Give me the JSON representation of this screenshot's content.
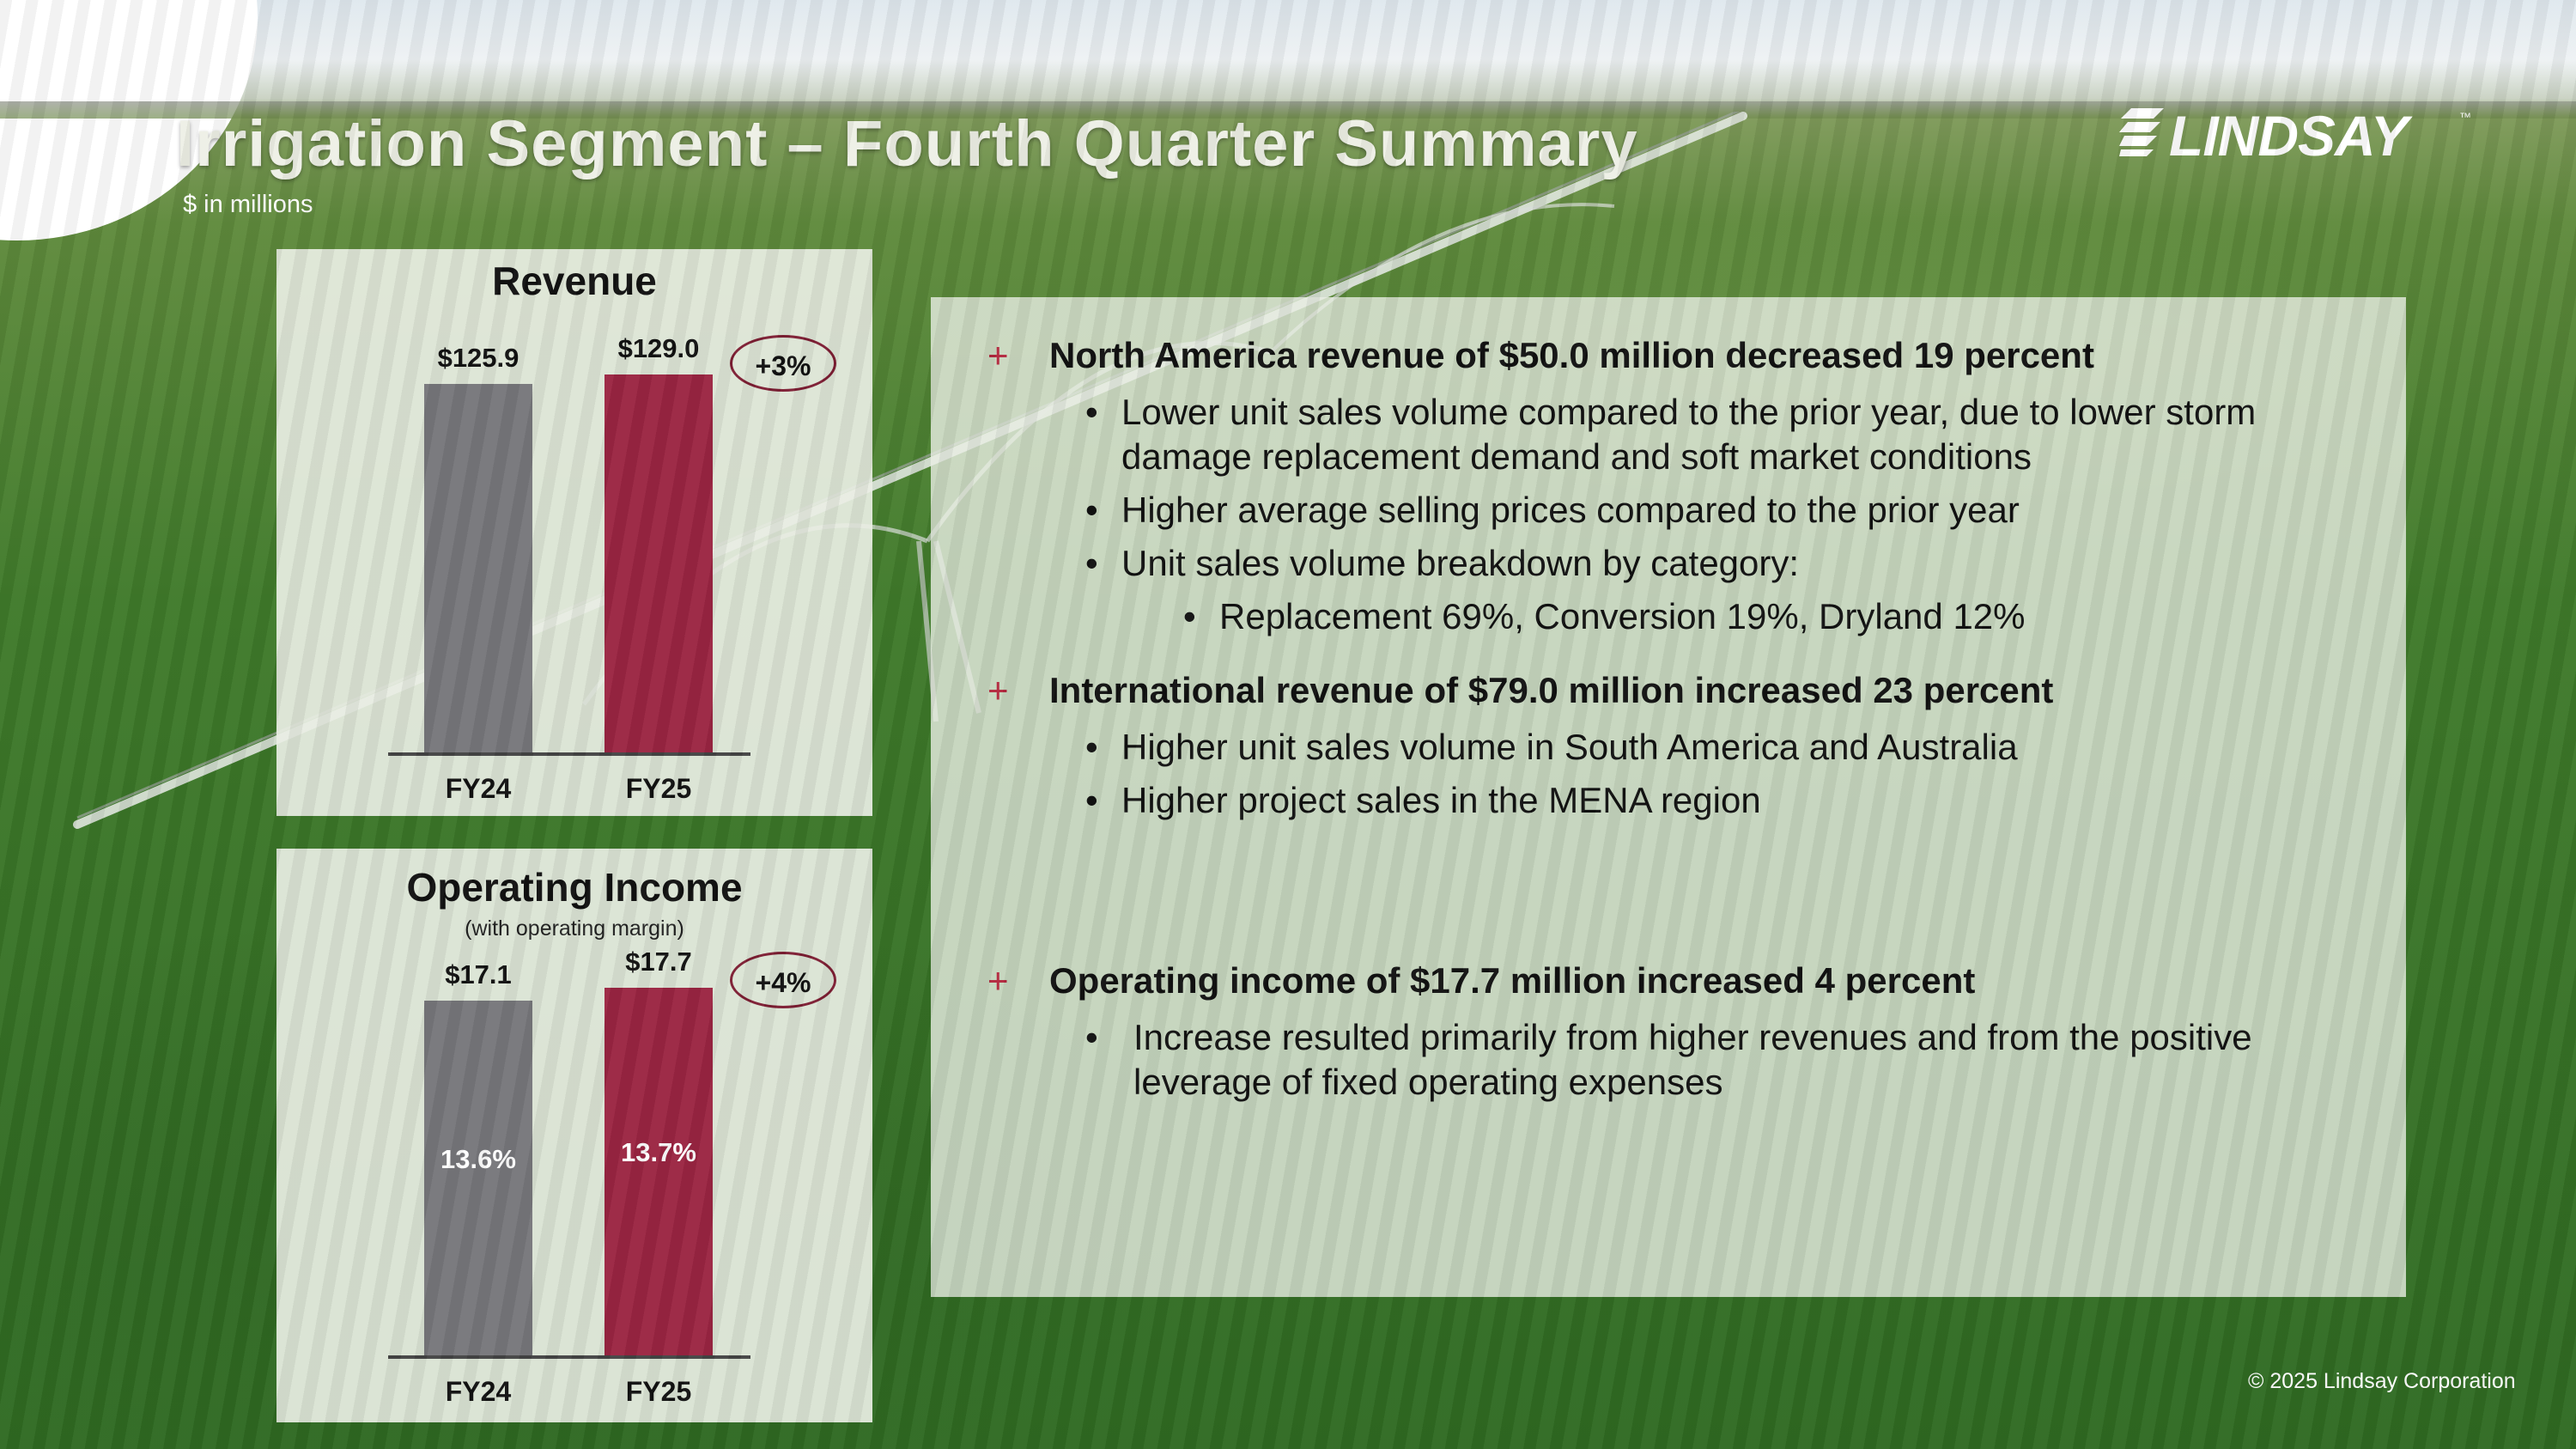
{
  "title": "Irrigation Segment – Fourth Quarter Summary",
  "subtitle": "$ in millions",
  "logo": {
    "text": "LINDSAY",
    "tm": "™"
  },
  "revenue_chart": {
    "title": "Revenue",
    "growth": "+3%",
    "categories": [
      "FY24",
      "FY25"
    ],
    "value_labels": [
      "$125.9",
      "$129.0"
    ]
  },
  "operating_income_chart": {
    "title": "Operating Income",
    "note": "(with operating margin)",
    "growth": "+4%",
    "categories": [
      "FY24",
      "FY25"
    ],
    "value_labels": [
      "$17.1",
      "$17.7"
    ],
    "margin_labels": [
      "13.6%",
      "13.7%"
    ]
  },
  "chart_data": [
    {
      "type": "bar",
      "title": "Revenue",
      "categories": [
        "FY24",
        "FY25"
      ],
      "values": [
        125.9,
        129.0
      ],
      "annotations": [
        "+3%"
      ]
    },
    {
      "type": "bar",
      "title": "Operating Income",
      "subtitle": "(with operating margin)",
      "categories": [
        "FY24",
        "FY25"
      ],
      "values": [
        17.1,
        17.7
      ],
      "data_labels_inside": [
        "13.6%",
        "13.7%"
      ],
      "annotations": [
        "+4%"
      ]
    }
  ],
  "colors": {
    "fy24": "#77777b",
    "fy25": "#9b2542",
    "plus": "#b3283e"
  },
  "summary": {
    "marker": "+",
    "bullet": "•",
    "sections": [
      {
        "heading": "North America revenue of $50.0 million decreased 19 percent",
        "bullets": [
          [
            "Lower unit sales volume compared to the prior year, due to lower storm",
            "damage replacement demand and soft market conditions"
          ],
          [
            "Higher average selling prices compared to the prior year"
          ],
          [
            "Unit sales volume breakdown by category:"
          ]
        ],
        "sub_bullet": "Replacement 69%, Conversion 19%, Dryland 12%"
      },
      {
        "heading": "International revenue of $79.0 million increased 23 percent",
        "bullets": [
          [
            "Higher unit sales volume in South America and Australia"
          ],
          [
            "Higher project sales in the MENA region"
          ]
        ]
      },
      {
        "heading": "Operating income of $17.7 million increased 4 percent",
        "bullets": [
          [
            "Increase resulted primarily from higher revenues and from the positive",
            "leverage of fixed operating expenses"
          ]
        ]
      }
    ]
  },
  "copyright": "© 2025 Lindsay Corporation"
}
